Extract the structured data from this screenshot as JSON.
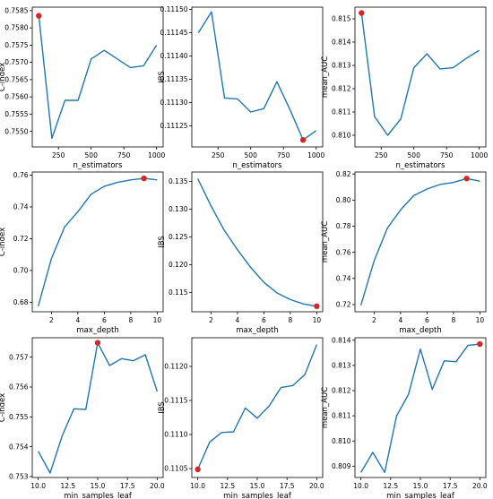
{
  "figure": {
    "line_color": "#1f77b4",
    "marker_color": "#d62728"
  },
  "chart_data": [
    {
      "type": "line",
      "xlabel": "n_estimators",
      "ylabel": "C-index",
      "x": [
        100,
        200,
        300,
        400,
        500,
        600,
        700,
        800,
        900,
        1000
      ],
      "y": [
        0.75835,
        0.7548,
        0.7559,
        0.7559,
        0.7571,
        0.75735,
        0.7571,
        0.75685,
        0.7569,
        0.7575
      ],
      "xlim": [
        50,
        1050
      ],
      "ylim": [
        0.75455,
        0.7586
      ],
      "xticks": [
        250,
        500,
        750,
        1000
      ],
      "xtick_labels": [
        "250",
        "500",
        "750",
        "1000"
      ],
      "yticks": [
        0.755,
        0.7555,
        0.756,
        0.7565,
        0.757,
        0.7575,
        0.758,
        0.7585
      ],
      "ytick_labels": [
        "0.7550",
        "0.7555",
        "0.7560",
        "0.7565",
        "0.7570",
        "0.7575",
        "0.7580",
        "0.7585"
      ],
      "highlight": {
        "x": 100,
        "y": 0.75835
      }
    },
    {
      "type": "line",
      "xlabel": "n_estimators",
      "ylabel": "IBS",
      "x": [
        100,
        200,
        300,
        400,
        500,
        600,
        700,
        800,
        900,
        1000
      ],
      "y": [
        0.11145,
        0.111495,
        0.11131,
        0.111308,
        0.11128,
        0.111287,
        0.111345,
        0.111285,
        0.11122,
        0.11124
      ],
      "xlim": [
        50,
        1050
      ],
      "ylim": [
        0.111205,
        0.111505
      ],
      "xticks": [
        250,
        500,
        750,
        1000
      ],
      "xtick_labels": [
        "250",
        "500",
        "750",
        "1000"
      ],
      "yticks": [
        0.11125,
        0.1113,
        0.11135,
        0.1114,
        0.11145,
        0.1115
      ],
      "ytick_labels": [
        "0.11125",
        "0.11130",
        "0.11135",
        "0.11140",
        "0.11145",
        "0.11150"
      ],
      "highlight": {
        "x": 900,
        "y": 0.11122
      }
    },
    {
      "type": "line",
      "xlabel": "n_estimators",
      "ylabel": "mean_AUC",
      "x": [
        100,
        200,
        300,
        400,
        500,
        600,
        700,
        800,
        900,
        1000
      ],
      "y": [
        0.81525,
        0.8108,
        0.81,
        0.8107,
        0.8129,
        0.8135,
        0.81285,
        0.8129,
        0.8133,
        0.81365
      ],
      "xlim": [
        50,
        1050
      ],
      "ylim": [
        0.8095,
        0.8155
      ],
      "xticks": [
        250,
        500,
        750,
        1000
      ],
      "xtick_labels": [
        "250",
        "500",
        "750",
        "1000"
      ],
      "yticks": [
        0.81,
        0.811,
        0.812,
        0.813,
        0.814,
        0.815
      ],
      "ytick_labels": [
        "0.810",
        "0.811",
        "0.812",
        "0.813",
        "0.814",
        "0.815"
      ],
      "highlight": {
        "x": 100,
        "y": 0.81525
      }
    },
    {
      "type": "line",
      "xlabel": "max_depth",
      "ylabel": "C-index",
      "x": [
        1,
        2,
        3,
        4,
        5,
        6,
        7,
        8,
        9,
        10
      ],
      "y": [
        0.6775,
        0.7075,
        0.7275,
        0.737,
        0.748,
        0.753,
        0.7555,
        0.757,
        0.758,
        0.757
      ],
      "xlim": [
        0.55,
        10.45
      ],
      "ylim": [
        0.674,
        0.762
      ],
      "xticks": [
        2,
        4,
        6,
        8,
        10
      ],
      "xtick_labels": [
        "2",
        "4",
        "6",
        "8",
        "10"
      ],
      "yticks": [
        0.68,
        0.7,
        0.72,
        0.74,
        0.76
      ],
      "ytick_labels": [
        "0.68",
        "0.70",
        "0.72",
        "0.74",
        "0.76"
      ],
      "highlight": {
        "x": 9,
        "y": 0.758
      }
    },
    {
      "type": "line",
      "xlabel": "max_depth",
      "ylabel": "IBS",
      "x": [
        1,
        2,
        3,
        4,
        5,
        6,
        7,
        8,
        9,
        10
      ],
      "y": [
        0.1355,
        0.1306,
        0.1262,
        0.1227,
        0.1195,
        0.1168,
        0.1149,
        0.1137,
        0.1129,
        0.1125
      ],
      "xlim": [
        0.55,
        10.45
      ],
      "ylim": [
        0.1115,
        0.1367
      ],
      "xticks": [
        2,
        4,
        6,
        8,
        10
      ],
      "xtick_labels": [
        "2",
        "4",
        "6",
        "8",
        "10"
      ],
      "yticks": [
        0.115,
        0.12,
        0.125,
        0.13,
        0.135
      ],
      "ytick_labels": [
        "0.115",
        "0.120",
        "0.125",
        "0.130",
        "0.135"
      ],
      "highlight": {
        "x": 10,
        "y": 0.1125
      }
    },
    {
      "type": "line",
      "xlabel": "max_depth",
      "ylabel": "mean_AUC",
      "x": [
        1,
        2,
        3,
        4,
        5,
        6,
        7,
        8,
        9,
        10
      ],
      "y": [
        0.7195,
        0.7535,
        0.7785,
        0.7925,
        0.8035,
        0.8085,
        0.812,
        0.8135,
        0.8165,
        0.8145
      ],
      "xlim": [
        0.55,
        10.45
      ],
      "ylim": [
        0.7145,
        0.8215
      ],
      "xticks": [
        2,
        4,
        6,
        8,
        10
      ],
      "xtick_labels": [
        "2",
        "4",
        "6",
        "8",
        "10"
      ],
      "yticks": [
        0.72,
        0.74,
        0.76,
        0.78,
        0.8,
        0.82
      ],
      "ytick_labels": [
        "0.72",
        "0.74",
        "0.76",
        "0.78",
        "0.80",
        "0.82"
      ],
      "highlight": {
        "x": 9,
        "y": 0.8165
      }
    },
    {
      "type": "line",
      "xlabel": "min_samples_leaf",
      "ylabel": "C-index",
      "x": [
        10,
        11,
        12,
        13,
        14,
        15,
        16,
        17,
        18,
        19,
        20
      ],
      "y": [
        0.75385,
        0.75312,
        0.75435,
        0.75527,
        0.75525,
        0.75748,
        0.75672,
        0.75695,
        0.75688,
        0.75708,
        0.75585
      ],
      "xlim": [
        9.5,
        20.5
      ],
      "ylim": [
        0.75297,
        0.75765
      ],
      "xticks": [
        10,
        12.5,
        15,
        17.5,
        20
      ],
      "xtick_labels": [
        "10.0",
        "12.5",
        "15.0",
        "17.5",
        "20.0"
      ],
      "yticks": [
        0.753,
        0.754,
        0.755,
        0.756,
        0.757
      ],
      "ytick_labels": [
        "0.753",
        "0.754",
        "0.755",
        "0.756",
        "0.757"
      ],
      "highlight": {
        "x": 15,
        "y": 0.75748
      }
    },
    {
      "type": "line",
      "xlabel": "min_samples_leaf",
      "ylabel": "IBS",
      "x": [
        10,
        11,
        12,
        13,
        14,
        15,
        16,
        17,
        18,
        19,
        20
      ],
      "y": [
        0.11049,
        0.11089,
        0.11103,
        0.11104,
        0.11139,
        0.11124,
        0.11142,
        0.11169,
        0.11172,
        0.11188,
        0.11232
      ],
      "xlim": [
        9.5,
        20.5
      ],
      "ylim": [
        0.11037,
        0.11242
      ],
      "xticks": [
        10,
        12.5,
        15,
        17.5,
        20
      ],
      "xtick_labels": [
        "10.0",
        "12.5",
        "15.0",
        "17.5",
        "20.0"
      ],
      "yticks": [
        0.1105,
        0.111,
        0.1115,
        0.112
      ],
      "ytick_labels": [
        "0.1105",
        "0.1110",
        "0.1115",
        "0.1120"
      ],
      "highlight": {
        "x": 10,
        "y": 0.11049
      }
    },
    {
      "type": "line",
      "xlabel": "min_samples_leaf",
      "ylabel": "mean_AUC",
      "x": [
        10,
        11,
        12,
        13,
        14,
        15,
        16,
        17,
        18,
        19,
        20
      ],
      "y": [
        0.80875,
        0.80955,
        0.80875,
        0.811,
        0.81185,
        0.81365,
        0.81205,
        0.81318,
        0.81315,
        0.8138,
        0.81385
      ],
      "xlim": [
        9.5,
        20.5
      ],
      "ylim": [
        0.80855,
        0.8141
      ],
      "xticks": [
        10,
        12.5,
        15,
        17.5,
        20
      ],
      "xtick_labels": [
        "10.0",
        "12.5",
        "15.0",
        "17.5",
        "20.0"
      ],
      "yticks": [
        0.809,
        0.81,
        0.811,
        0.812,
        0.813,
        0.814
      ],
      "ytick_labels": [
        "0.809",
        "0.810",
        "0.811",
        "0.812",
        "0.813",
        "0.814"
      ],
      "highlight": {
        "x": 20,
        "y": 0.81385
      }
    }
  ]
}
